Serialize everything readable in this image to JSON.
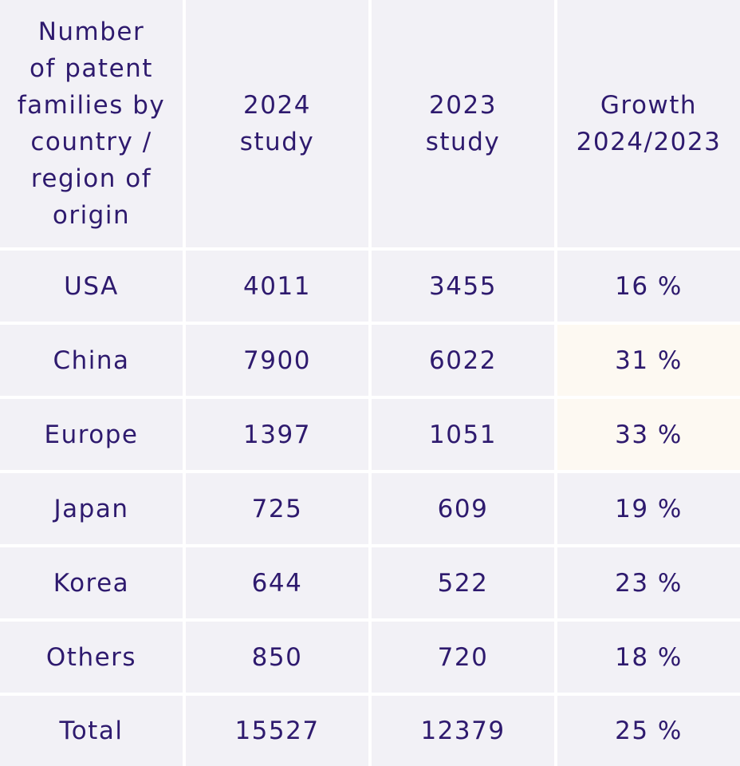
{
  "chart_data": {
    "type": "table",
    "columns": [
      "Number\nof patent\nfamilies by\ncountry /\nregion of\norigin",
      "2024\nstudy",
      "2023\nstudy",
      "Growth\n2024/2023"
    ],
    "rows": [
      [
        "USA",
        "4011",
        "3455",
        "16 %"
      ],
      [
        "China",
        "7900",
        "6022",
        "31 %"
      ],
      [
        "Europe",
        "1397",
        "1051",
        "33 %"
      ],
      [
        "Japan",
        "725",
        "609",
        "19 %"
      ],
      [
        "Korea",
        "644",
        "522",
        "23 %"
      ],
      [
        "Others",
        "850",
        "720",
        "18 %"
      ],
      [
        "Total",
        "15527",
        "12379",
        "25 %"
      ]
    ],
    "highlighted_cells": [
      [
        1,
        3
      ],
      [
        2,
        3
      ]
    ]
  },
  "colors": {
    "text": "#2e1a6e",
    "cell_background": "#f2f1f6",
    "highlight_background": "#fdf9f2",
    "grid_lines": "#ffffff"
  }
}
